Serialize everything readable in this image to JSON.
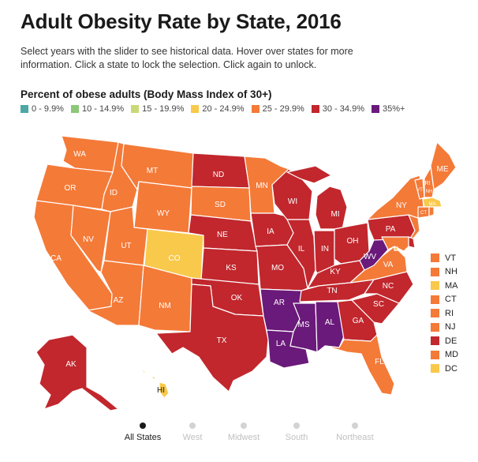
{
  "title": "Adult Obesity Rate by State, 2016",
  "description": "Select years with the slider to see historical data. Hover over states for more information. Click a state to lock the selection. Click again to unlock.",
  "legend": {
    "title": "Percent of obese adults (Body Mass Index of 30+)",
    "items": [
      {
        "label": "0 - 9.9%",
        "color": "#4ba8a5"
      },
      {
        "label": "10 - 14.9%",
        "color": "#8cc878"
      },
      {
        "label": "15 - 19.9%",
        "color": "#c9d97a"
      },
      {
        "label": "20 - 24.9%",
        "color": "#f9c94b"
      },
      {
        "label": "25 - 29.9%",
        "color": "#f47a38"
      },
      {
        "label": "30 - 34.9%",
        "color": "#c1272d"
      },
      {
        "label": "35%+",
        "color": "#6a1a7a"
      }
    ]
  },
  "colors": {
    "c20": "#f9c94b",
    "c25": "#f47a38",
    "c30": "#c1272d",
    "c35": "#6a1a7a"
  },
  "states": {
    "WA": {
      "label": "WA",
      "bin": "c25"
    },
    "OR": {
      "label": "OR",
      "bin": "c25"
    },
    "CA": {
      "label": "CA",
      "bin": "c25"
    },
    "NV": {
      "label": "NV",
      "bin": "c25"
    },
    "ID": {
      "label": "ID",
      "bin": "c25"
    },
    "MT": {
      "label": "MT",
      "bin": "c25"
    },
    "WY": {
      "label": "WY",
      "bin": "c25"
    },
    "UT": {
      "label": "UT",
      "bin": "c25"
    },
    "CO": {
      "label": "CO",
      "bin": "c20"
    },
    "AZ": {
      "label": "AZ",
      "bin": "c25"
    },
    "NM": {
      "label": "NM",
      "bin": "c25"
    },
    "ND": {
      "label": "ND",
      "bin": "c30"
    },
    "SD": {
      "label": "SD",
      "bin": "c25"
    },
    "NE": {
      "label": "NE",
      "bin": "c30"
    },
    "KS": {
      "label": "KS",
      "bin": "c30"
    },
    "OK": {
      "label": "OK",
      "bin": "c30"
    },
    "TX": {
      "label": "TX",
      "bin": "c30"
    },
    "MN": {
      "label": "MN",
      "bin": "c25"
    },
    "IA": {
      "label": "IA",
      "bin": "c30"
    },
    "MO": {
      "label": "MO",
      "bin": "c30"
    },
    "AR": {
      "label": "AR",
      "bin": "c35"
    },
    "LA": {
      "label": "LA",
      "bin": "c35"
    },
    "WI": {
      "label": "WI",
      "bin": "c30"
    },
    "IL": {
      "label": "IL",
      "bin": "c30"
    },
    "MI": {
      "label": "MI",
      "bin": "c30"
    },
    "IN": {
      "label": "IN",
      "bin": "c30"
    },
    "OH": {
      "label": "OH",
      "bin": "c30"
    },
    "KY": {
      "label": "KY",
      "bin": "c30"
    },
    "TN": {
      "label": "TN",
      "bin": "c30"
    },
    "MS": {
      "label": "MS",
      "bin": "c35"
    },
    "AL": {
      "label": "AL",
      "bin": "c35"
    },
    "GA": {
      "label": "GA",
      "bin": "c30"
    },
    "FL": {
      "label": "FL",
      "bin": "c25"
    },
    "SC": {
      "label": "SC",
      "bin": "c30"
    },
    "NC": {
      "label": "NC",
      "bin": "c30"
    },
    "VA": {
      "label": "VA",
      "bin": "c25"
    },
    "WV": {
      "label": "WV",
      "bin": "c35"
    },
    "PA": {
      "label": "PA",
      "bin": "c30"
    },
    "NY": {
      "label": "NY",
      "bin": "c25"
    },
    "ME": {
      "label": "ME",
      "bin": "c25"
    },
    "VT": {
      "label": "VT",
      "bin": "c25"
    },
    "NH": {
      "label": "NH",
      "bin": "c25"
    },
    "MA": {
      "label": "MA",
      "bin": "c20"
    },
    "CT": {
      "label": "CT",
      "bin": "c25"
    },
    "RI": {
      "label": "RI",
      "bin": "c25"
    },
    "NJ": {
      "label": "NJ",
      "bin": "c25"
    },
    "DE": {
      "label": "DE",
      "bin": "c30"
    },
    "MD": {
      "label": "MD",
      "bin": "c25"
    },
    "DC": {
      "label": "DC",
      "bin": "c20"
    },
    "AK": {
      "label": "AK",
      "bin": "c30"
    },
    "HI": {
      "label": "HI",
      "bin": "c20"
    }
  },
  "small_states": [
    {
      "label": "VT",
      "bin": "c25"
    },
    {
      "label": "NH",
      "bin": "c25"
    },
    {
      "label": "MA",
      "bin": "c20"
    },
    {
      "label": "CT",
      "bin": "c25"
    },
    {
      "label": "RI",
      "bin": "c25"
    },
    {
      "label": "NJ",
      "bin": "c25"
    },
    {
      "label": "DE",
      "bin": "c30"
    },
    {
      "label": "MD",
      "bin": "c25"
    },
    {
      "label": "DC",
      "bin": "c20"
    }
  ],
  "regions": [
    {
      "label": "All States",
      "active": true
    },
    {
      "label": "West",
      "active": false
    },
    {
      "label": "Midwest",
      "active": false
    },
    {
      "label": "South",
      "active": false
    },
    {
      "label": "Northeast",
      "active": false
    }
  ]
}
